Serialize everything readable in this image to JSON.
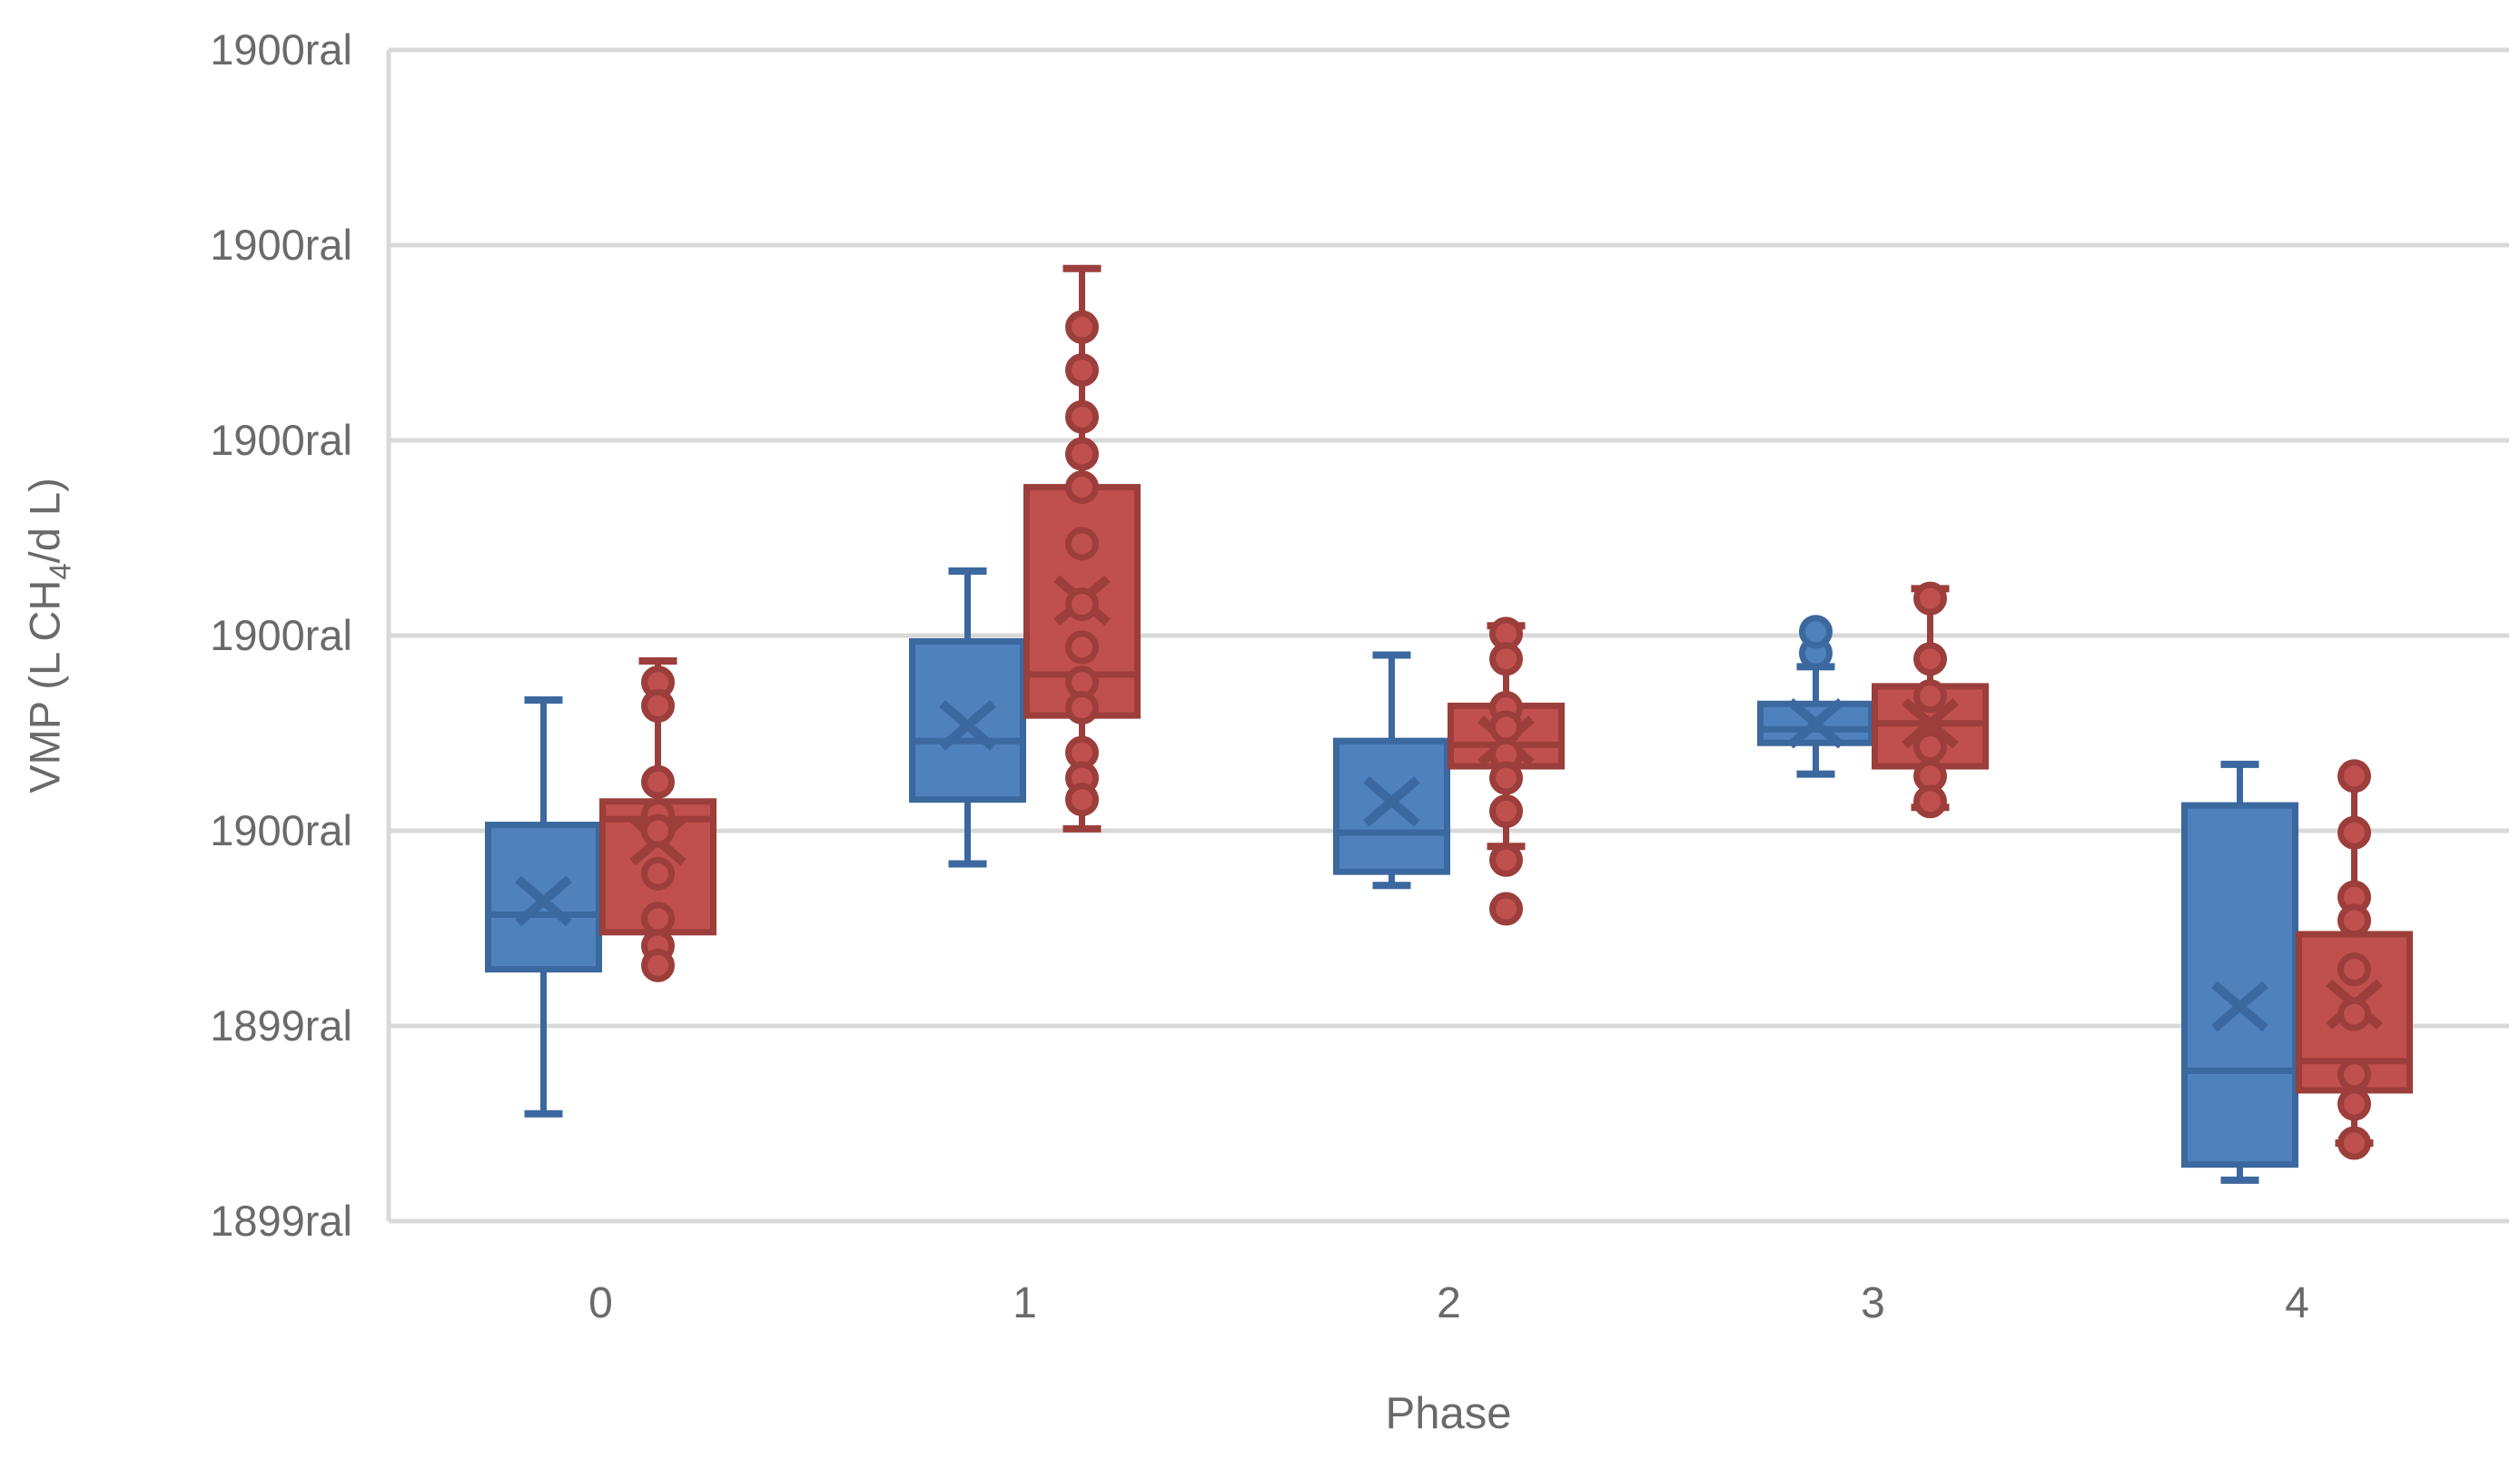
{
  "chart_data": {
    "type": "box",
    "title": "",
    "x_axis": {
      "label": "Phase",
      "categories": [
        "0",
        "1",
        "2",
        "3",
        "4"
      ]
    },
    "y_axis": {
      "label": "VMP (L CH4/d L)",
      "label_parts": {
        "prefix": "VMP (L CH",
        "sub": "4",
        "suffix": "/d L)"
      },
      "tick_labels_top_to_bottom": [
        "1900ral",
        "1900ral",
        "1900ral",
        "1900ral",
        "1900ral",
        "1899ral",
        "1899ral"
      ],
      "value_units": "gridline steps above bottom axis (0 = bottom axis line, 6 = top gridline); tick label text is corrupted in source image",
      "gridlines": 7,
      "grid_on": true
    },
    "legend": "none",
    "colors": {
      "blue_fill": "#4F81BD",
      "blue_border": "#3B689E",
      "red_fill": "#C0504D",
      "red_border": "#9C3E3B",
      "gridline": "#D9D9D9",
      "axis_text": "#6A6A6A",
      "background": "#FFFFFF"
    },
    "series": [
      {
        "name": "series-blue",
        "fill": "#4F81BD",
        "border": "#3B689E",
        "side": -1,
        "boxes": [
          {
            "category": "0",
            "lo": 0.55,
            "q1": 1.29,
            "med": 1.57,
            "q3": 2.03,
            "hi": 2.67,
            "mean": 1.64,
            "dots": [],
            "cap_lo": true,
            "cap_hi": true
          },
          {
            "category": "1",
            "lo": 1.83,
            "q1": 2.16,
            "med": 2.46,
            "q3": 2.97,
            "hi": 3.33,
            "mean": 2.54,
            "dots": [],
            "cap_lo": true,
            "cap_hi": true
          },
          {
            "category": "2",
            "lo": 1.72,
            "q1": 1.79,
            "med": 1.99,
            "q3": 2.46,
            "hi": 2.9,
            "mean": 2.15,
            "dots": [],
            "cap_lo": true,
            "cap_hi": true
          },
          {
            "category": "3",
            "lo": 2.29,
            "q1": 2.45,
            "med": 2.52,
            "q3": 2.65,
            "hi": 2.84,
            "mean": 2.55,
            "dots": [
              2.91,
              3.02
            ],
            "cap_lo": true,
            "cap_hi": true
          },
          {
            "category": "4",
            "lo": 0.21,
            "q1": 0.29,
            "med": 0.77,
            "q3": 2.13,
            "hi": 2.34,
            "mean": 1.1,
            "dots": [],
            "cap_lo": true,
            "cap_hi": true
          }
        ]
      },
      {
        "name": "series-red",
        "fill": "#C0504D",
        "border": "#9C3E3B",
        "side": 1,
        "boxes": [
          {
            "category": "0",
            "lo": 1.48,
            "q1": 1.48,
            "med": 2.06,
            "q3": 2.15,
            "hi": 2.87,
            "mean": 1.95,
            "dots": [
              2.76,
              2.64,
              2.25,
              2.08,
              2.0,
              1.78,
              1.55,
              1.41,
              1.31
            ],
            "cap_lo": false,
            "cap_hi": true
          },
          {
            "category": "1",
            "lo": 2.01,
            "q1": 2.59,
            "med": 2.8,
            "q3": 3.76,
            "hi": 4.88,
            "mean": 3.18,
            "dots": [
              4.58,
              4.36,
              4.12,
              3.93,
              3.76,
              3.47,
              3.16,
              2.94,
              2.76,
              2.63,
              2.4,
              2.27,
              2.16
            ],
            "cap_lo": true,
            "cap_hi": true
          },
          {
            "category": "2",
            "lo": 1.92,
            "q1": 2.33,
            "med": 2.44,
            "q3": 2.64,
            "hi": 3.05,
            "mean": 2.46,
            "dots": [
              3.01,
              2.88,
              2.63,
              2.53,
              2.39,
              2.27,
              2.1,
              1.85,
              1.6
            ],
            "cap_lo": true,
            "cap_hi": true
          },
          {
            "category": "3",
            "lo": 2.12,
            "q1": 2.33,
            "med": 2.55,
            "q3": 2.74,
            "hi": 3.24,
            "mean": 2.55,
            "dots": [
              3.19,
              2.88,
              2.69,
              2.43,
              2.28,
              2.15
            ],
            "cap_lo": true,
            "cap_hi": true
          },
          {
            "category": "4",
            "lo": 0.4,
            "q1": 0.67,
            "med": 0.82,
            "q3": 1.47,
            "hi": 2.28,
            "mean": 1.11,
            "dots": [
              2.28,
              1.99,
              1.66,
              1.54,
              1.29,
              1.06,
              0.75,
              0.6,
              0.4
            ],
            "cap_lo": true,
            "cap_hi": false
          }
        ]
      }
    ]
  }
}
